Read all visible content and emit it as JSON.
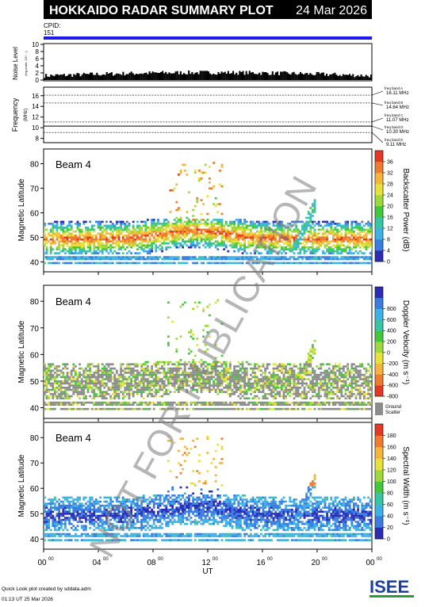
{
  "header": {
    "title": "HOKKAIDO RADAR SUMMARY PLOT",
    "date": "24 Mar 2026",
    "cpid_label": "CPID:",
    "cpid_value": "151",
    "watermark": "NOT FOR PUBLICATION"
  },
  "noise_panel": {
    "ylabel": "Noise Level",
    "ylabel_unit": "(log scale, 10^ ...)",
    "ylim": [
      0,
      10
    ],
    "ticks": [
      "0",
      "2",
      "4",
      "6",
      "8",
      "10"
    ]
  },
  "frequency_panel": {
    "ylabel": "Frequency",
    "ylabel_unit": "(MHz)",
    "ticks": [
      "8",
      "10",
      "12",
      "14",
      "16"
    ],
    "bands": [
      {
        "label": "freq band A",
        "value": "16.11 MHz"
      },
      {
        "label": "freq band B",
        "value": "14.64 MHz"
      },
      {
        "label": "freq band C",
        "value": "11.07 MHz"
      },
      {
        "label": "freq band D",
        "value": "10.30 MHz"
      },
      {
        "label": "freq band E",
        "value": "9.11 MHz"
      }
    ]
  },
  "panels": [
    {
      "beam_label": "Beam  4",
      "ylabel": "Magnetic Latitude",
      "colorbar_title": "Backscatter Power (dB)",
      "colorbar_ticks": [
        "0",
        "4",
        "8",
        "12",
        "16",
        "20",
        "24",
        "28",
        "32",
        "36"
      ],
      "colors": [
        "#2b2bb6",
        "#3a7de0",
        "#3cb2e6",
        "#37c6a3",
        "#41c83b",
        "#9dd93a",
        "#e8e13b",
        "#f5b43a",
        "#f07a2d",
        "#e43a23"
      ],
      "extra_legend": ""
    },
    {
      "beam_label": "Beam  4",
      "ylabel": "Magnetic Latitude",
      "colorbar_title": "Doppler Velocity (m s⁻¹)",
      "colorbar_ticks": [
        "-800",
        "-600",
        "-400",
        "-200",
        "0",
        "200",
        "400",
        "600",
        "800"
      ],
      "colors": [
        "#e43a23",
        "#f07a2d",
        "#f5b43a",
        "#e8e13b",
        "#9dd93a",
        "#41c83b",
        "#37c6a3",
        "#3cb2e6",
        "#3a7de0",
        "#2b2bb6"
      ],
      "extra_legend": "Ground Scatter"
    },
    {
      "beam_label": "Beam  4",
      "ylabel": "Magnetic Latitude",
      "colorbar_title": "Spectral Width (m s⁻¹)",
      "colorbar_ticks": [
        "0",
        "20",
        "40",
        "60",
        "80",
        "100",
        "120",
        "140",
        "160",
        "180"
      ],
      "colors": [
        "#2b2bb6",
        "#3a7de0",
        "#3cb2e6",
        "#37c6a3",
        "#41c83b",
        "#9dd93a",
        "#e8e13b",
        "#f5b43a",
        "#f07a2d",
        "#e43a23"
      ],
      "extra_legend": ""
    }
  ],
  "chart_data": {
    "type": "heatmap",
    "xlabel": "UT",
    "x_ticks": [
      "00",
      "04",
      "08",
      "12",
      "16",
      "20",
      "00"
    ],
    "x_tick_superscript": "00",
    "xlim_hours": [
      0,
      24
    ],
    "lat_ylim": [
      36,
      86
    ],
    "lat_ticks": [
      40,
      50,
      60,
      70,
      80
    ],
    "scatter_bands": [
      {
        "name": "main echo band",
        "lat_low": 44,
        "lat_high": 56
      },
      {
        "name": "low latitude band",
        "lat_low": 38,
        "lat_high": 42
      }
    ]
  },
  "footer": {
    "note": "Quick Look plot created by sddata.adm",
    "timestamp": "01:13 UT 25 Mar 2026",
    "logo": "ISEE"
  }
}
